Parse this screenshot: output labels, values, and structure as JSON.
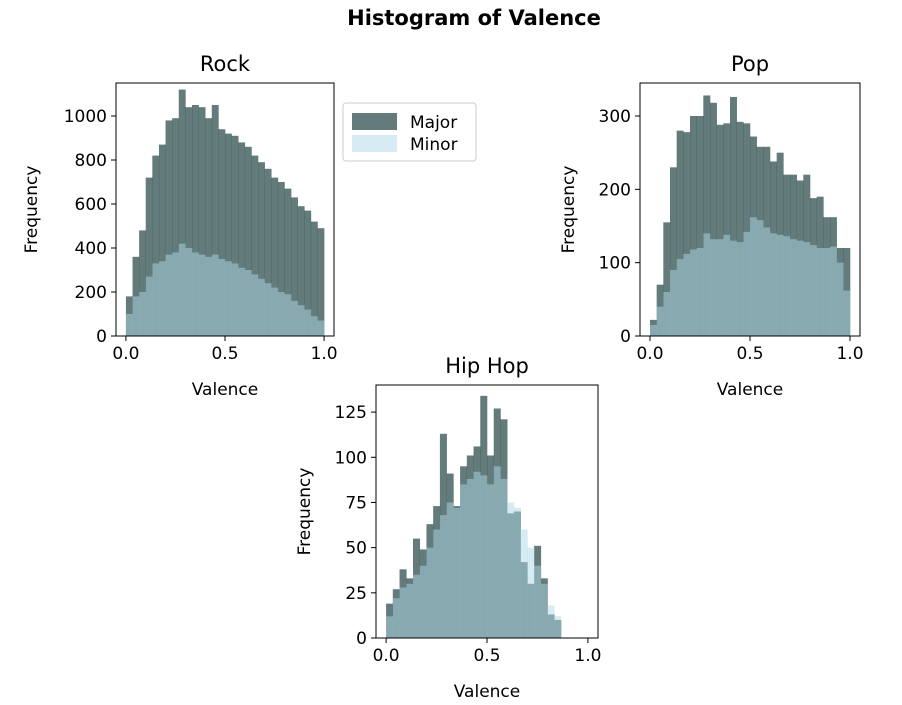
{
  "figure": {
    "title": "Histogram of Valence",
    "colors": {
      "major": "#2f4f4f",
      "minor": "#add8e6",
      "major_alpha": 0.75,
      "minor_alpha": 0.5
    }
  },
  "legend": {
    "placement": "right of Rock panel",
    "entries": [
      {
        "name": "Major",
        "color": "#2f4f4f"
      },
      {
        "name": "Minor",
        "color": "#add8e6"
      }
    ]
  },
  "chart_data": [
    {
      "type": "bar",
      "subtype": "histogram-overlay",
      "title": "Rock",
      "xlabel": "Valence",
      "ylabel": "Frequency",
      "xlim": [
        -0.05,
        1.05
      ],
      "ylim": [
        0,
        1150
      ],
      "xticks": [
        0.0,
        0.5,
        1.0
      ],
      "xtick_labels": [
        "0.0",
        "0.5",
        "1.0"
      ],
      "yticks": [
        0,
        200,
        400,
        600,
        800,
        1000
      ],
      "ytick_labels": [
        "0",
        "200",
        "400",
        "600",
        "800",
        "1000"
      ],
      "bins": 30,
      "bin_range": [
        0,
        1
      ],
      "series": [
        {
          "name": "Major",
          "values": [
            180,
            360,
            480,
            720,
            820,
            870,
            980,
            990,
            1120,
            1040,
            1050,
            1040,
            990,
            1050,
            940,
            920,
            910,
            880,
            860,
            820,
            790,
            760,
            720,
            700,
            670,
            630,
            590,
            570,
            520,
            490
          ]
        },
        {
          "name": "Minor",
          "values": [
            100,
            180,
            200,
            270,
            330,
            340,
            370,
            380,
            420,
            400,
            380,
            370,
            360,
            370,
            350,
            340,
            330,
            310,
            300,
            280,
            260,
            240,
            220,
            200,
            190,
            160,
            140,
            120,
            90,
            70
          ]
        }
      ]
    },
    {
      "type": "bar",
      "subtype": "histogram-overlay",
      "title": "Pop",
      "xlabel": "Valence",
      "ylabel": "Frequency",
      "xlim": [
        -0.05,
        1.05
      ],
      "ylim": [
        0,
        345
      ],
      "xticks": [
        0.0,
        0.5,
        1.0
      ],
      "xtick_labels": [
        "0.0",
        "0.5",
        "1.0"
      ],
      "yticks": [
        0,
        100,
        200,
        300
      ],
      "ytick_labels": [
        "0",
        "100",
        "200",
        "300"
      ],
      "bins": 30,
      "bin_range": [
        0,
        1
      ],
      "series": [
        {
          "name": "Major",
          "values": [
            22,
            70,
            155,
            230,
            280,
            278,
            300,
            300,
            328,
            318,
            288,
            290,
            326,
            292,
            290,
            272,
            258,
            258,
            238,
            250,
            220,
            220,
            212,
            220,
            188,
            190,
            162,
            162,
            120,
            120
          ]
        },
        {
          "name": "Minor",
          "values": [
            15,
            40,
            60,
            90,
            105,
            112,
            118,
            120,
            140,
            132,
            132,
            138,
            130,
            128,
            142,
            162,
            158,
            148,
            140,
            138,
            136,
            132,
            130,
            128,
            124,
            120,
            120,
            122,
            100,
            62
          ]
        }
      ]
    },
    {
      "type": "bar",
      "subtype": "histogram-overlay",
      "title": "Hip Hop",
      "xlabel": "Valence",
      "ylabel": "Frequency",
      "xlim": [
        -0.05,
        1.05
      ],
      "ylim": [
        0,
        140
      ],
      "xticks": [
        0.0,
        0.5,
        1.0
      ],
      "xtick_labels": [
        "0.0",
        "0.5",
        "1.0"
      ],
      "yticks": [
        0,
        25,
        50,
        75,
        100,
        125
      ],
      "ytick_labels": [
        "0",
        "25",
        "50",
        "75",
        "100",
        "125"
      ],
      "bins": 30,
      "bin_range": [
        0,
        1
      ],
      "series": [
        {
          "name": "Major",
          "values": [
            19,
            27,
            38,
            33,
            55,
            49,
            63,
            73,
            113,
            91,
            73,
            95,
            101,
            106,
            134,
            101,
            127,
            121,
            69,
            70,
            42,
            30,
            51,
            33,
            13,
            10,
            0,
            0,
            0,
            0
          ]
        },
        {
          "name": "Minor",
          "values": [
            12,
            22,
            28,
            30,
            35,
            40,
            50,
            60,
            68,
            75,
            72,
            85,
            88,
            92,
            90,
            85,
            95,
            88,
            75,
            72,
            60,
            50,
            40,
            30,
            18,
            12,
            0,
            0,
            0,
            0
          ]
        }
      ]
    }
  ]
}
